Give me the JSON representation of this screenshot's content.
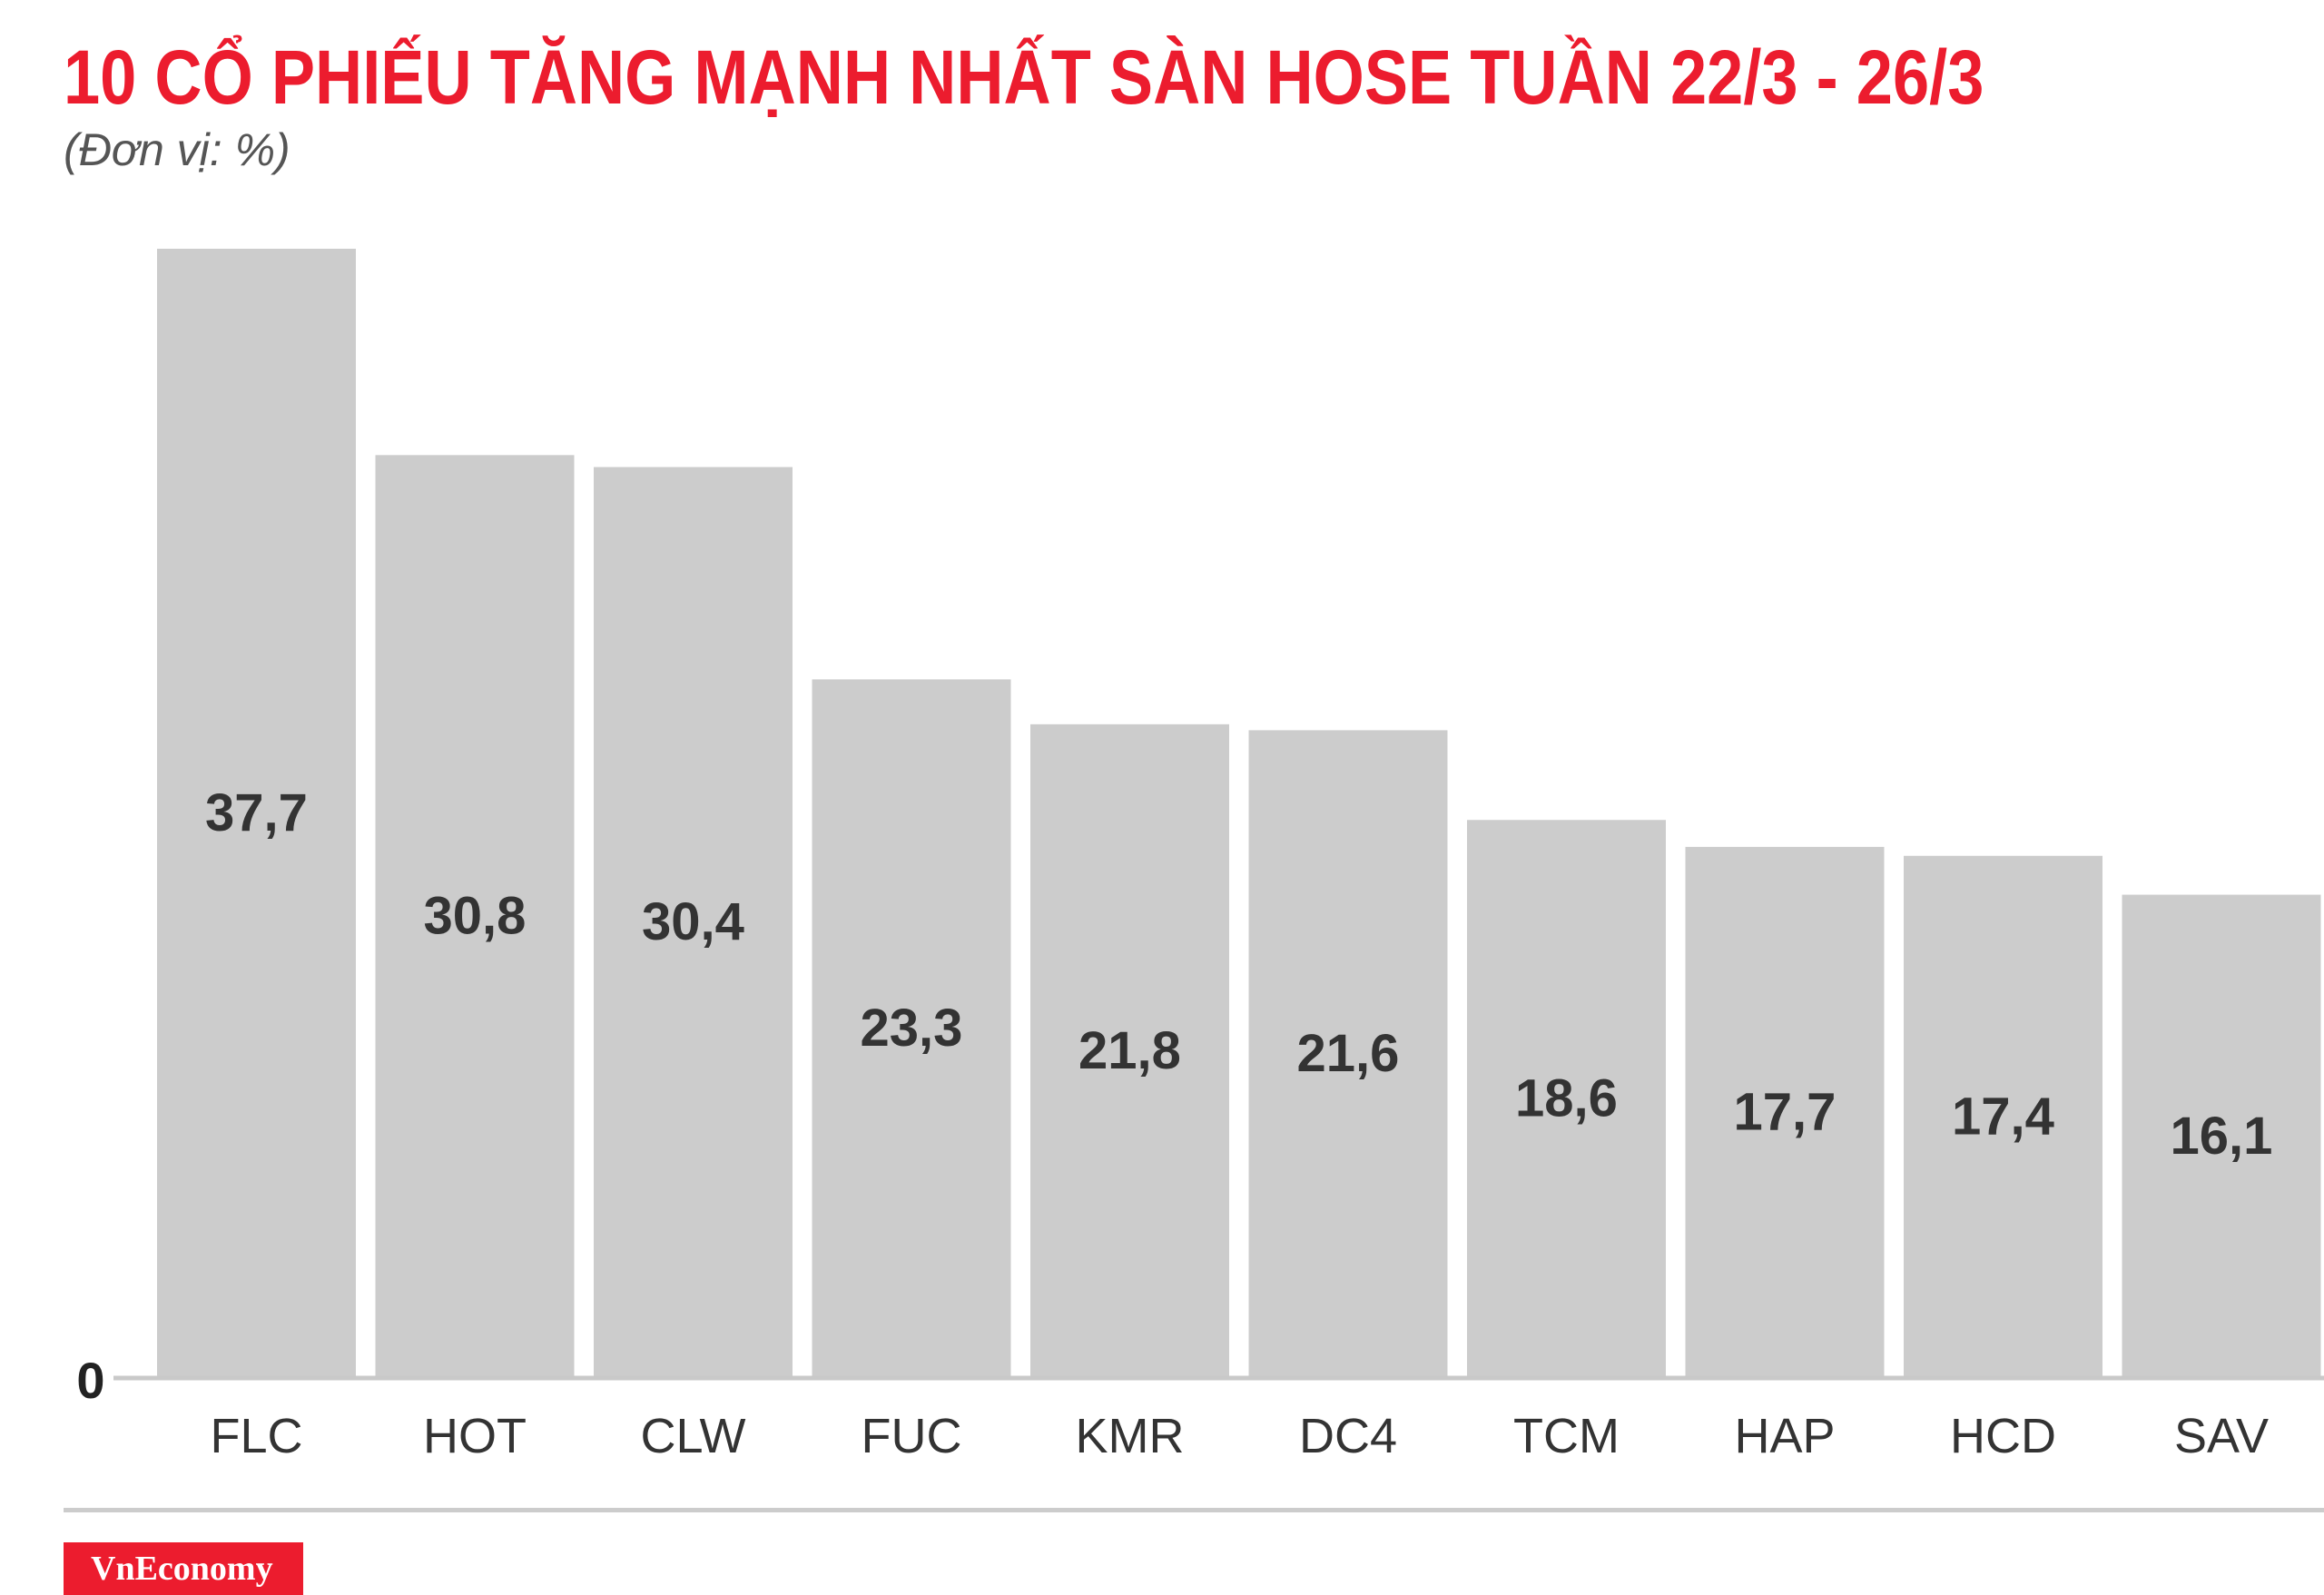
{
  "title": "10 CỔ PHIẾU TĂNG MẠNH NHẤT SÀN HOSE TUẦN 22/3 - 26/3",
  "subtitle": "(Đơn vị: %)",
  "logo": "VnEconomy",
  "colors": {
    "title": "#ec1c2e",
    "bar": "#cccccc",
    "label": "#333333",
    "logo_bg": "#ec1c2e"
  },
  "chart_data": {
    "type": "bar",
    "categories": [
      "FLC",
      "HOT",
      "CLW",
      "FUC",
      "KMR",
      "DC4",
      "TCM",
      "HAP",
      "HCD",
      "SAV"
    ],
    "values": [
      37.7,
      30.8,
      30.4,
      23.3,
      21.8,
      21.6,
      18.6,
      17.7,
      17.4,
      16.1
    ],
    "value_labels": [
      "37,7",
      "30,8",
      "30,4",
      "23,3",
      "21,8",
      "21,6",
      "18,6",
      "17,7",
      "17,4",
      "16,1"
    ],
    "y_tick_labels": [
      "0"
    ],
    "ylim": [
      0,
      37.7
    ],
    "grid": false,
    "legend": "none"
  }
}
